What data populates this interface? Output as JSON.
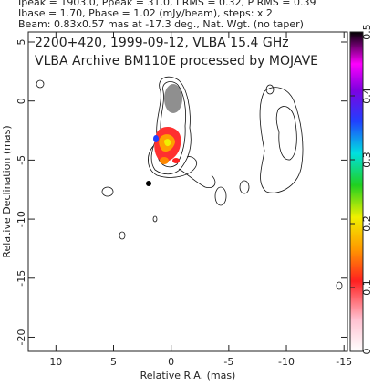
{
  "chart_data": {
    "type": "image",
    "header": [
      "Ipeak = 1903.0, Ppeak = 31.0, I RMS = 0.32, P RMS = 0.39",
      "Ibase = 1.70, Pbase = 1.02 (mJy/beam), steps: x 2",
      "Beam: 0.83x0.57 mas at -17.3 deg., Nat. Wgt. (no taper)"
    ],
    "annotations": [
      "2200+420, 1999-09-12, VLBA 15.4 GHz",
      "VLBA Archive BM110E processed by MOJAVE"
    ],
    "xlabel": "Relative R.A. (mas)",
    "ylabel": "Relative Declination (mas)",
    "xlim": [
      12.4,
      -15.3
    ],
    "xticks": [
      10,
      5,
      0,
      -5,
      -10,
      -15
    ],
    "ylim": [
      -21.2,
      5.85
    ],
    "yticks": [
      5,
      0,
      -5,
      -10,
      -15,
      -20
    ],
    "colorbar": {
      "lim": [
        0,
        0.5
      ],
      "ticks": [
        0,
        0.1,
        0.2,
        0.3,
        0.4,
        0.5
      ]
    }
  }
}
